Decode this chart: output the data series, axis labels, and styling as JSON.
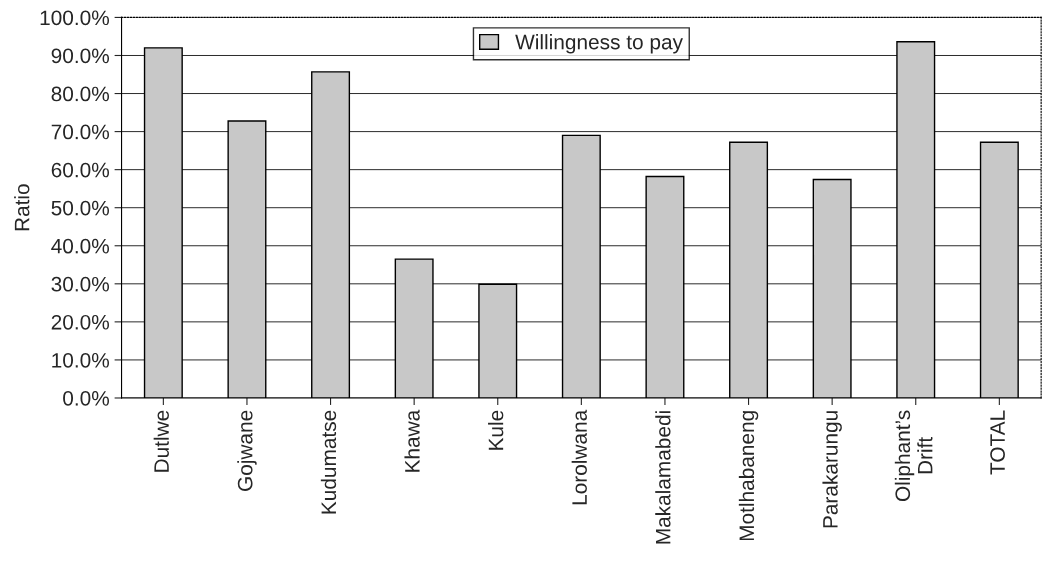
{
  "chart_data": {
    "type": "bar",
    "ylabel": "Ratio",
    "categories": [
      "Dutlwe",
      "Gojwane",
      "Kudumatse",
      "Khawa",
      "Kule",
      "Lorolwana",
      "Makalamabedi",
      "Motlhabaneng",
      "Parakarungu",
      "Oliphant’s\nDrift",
      "TOTAL"
    ],
    "series": [
      {
        "name": "Willingness to pay",
        "color": "#c8c8c8",
        "values": [
          0.92,
          0.728,
          0.857,
          0.365,
          0.299,
          0.69,
          0.582,
          0.672,
          0.574,
          0.936,
          0.672
        ]
      }
    ],
    "ylim": [
      0,
      1
    ],
    "yticks": [
      {
        "value": 0,
        "label": "0.0%"
      },
      {
        "value": 0.1,
        "label": "10.0%"
      },
      {
        "value": 0.2,
        "label": "20.0%"
      },
      {
        "value": 0.3,
        "label": "30.0%"
      },
      {
        "value": 0.4,
        "label": "40.0%"
      },
      {
        "value": 0.5,
        "label": "50.0%"
      },
      {
        "value": 0.6,
        "label": "60.0%"
      },
      {
        "value": 0.7,
        "label": "70.0%"
      },
      {
        "value": 0.8,
        "label": "80.0%"
      },
      {
        "value": 0.9,
        "label": "90.0%"
      },
      {
        "value": 1,
        "label": "100.0%"
      }
    ],
    "grid": "y",
    "legend": "top"
  }
}
